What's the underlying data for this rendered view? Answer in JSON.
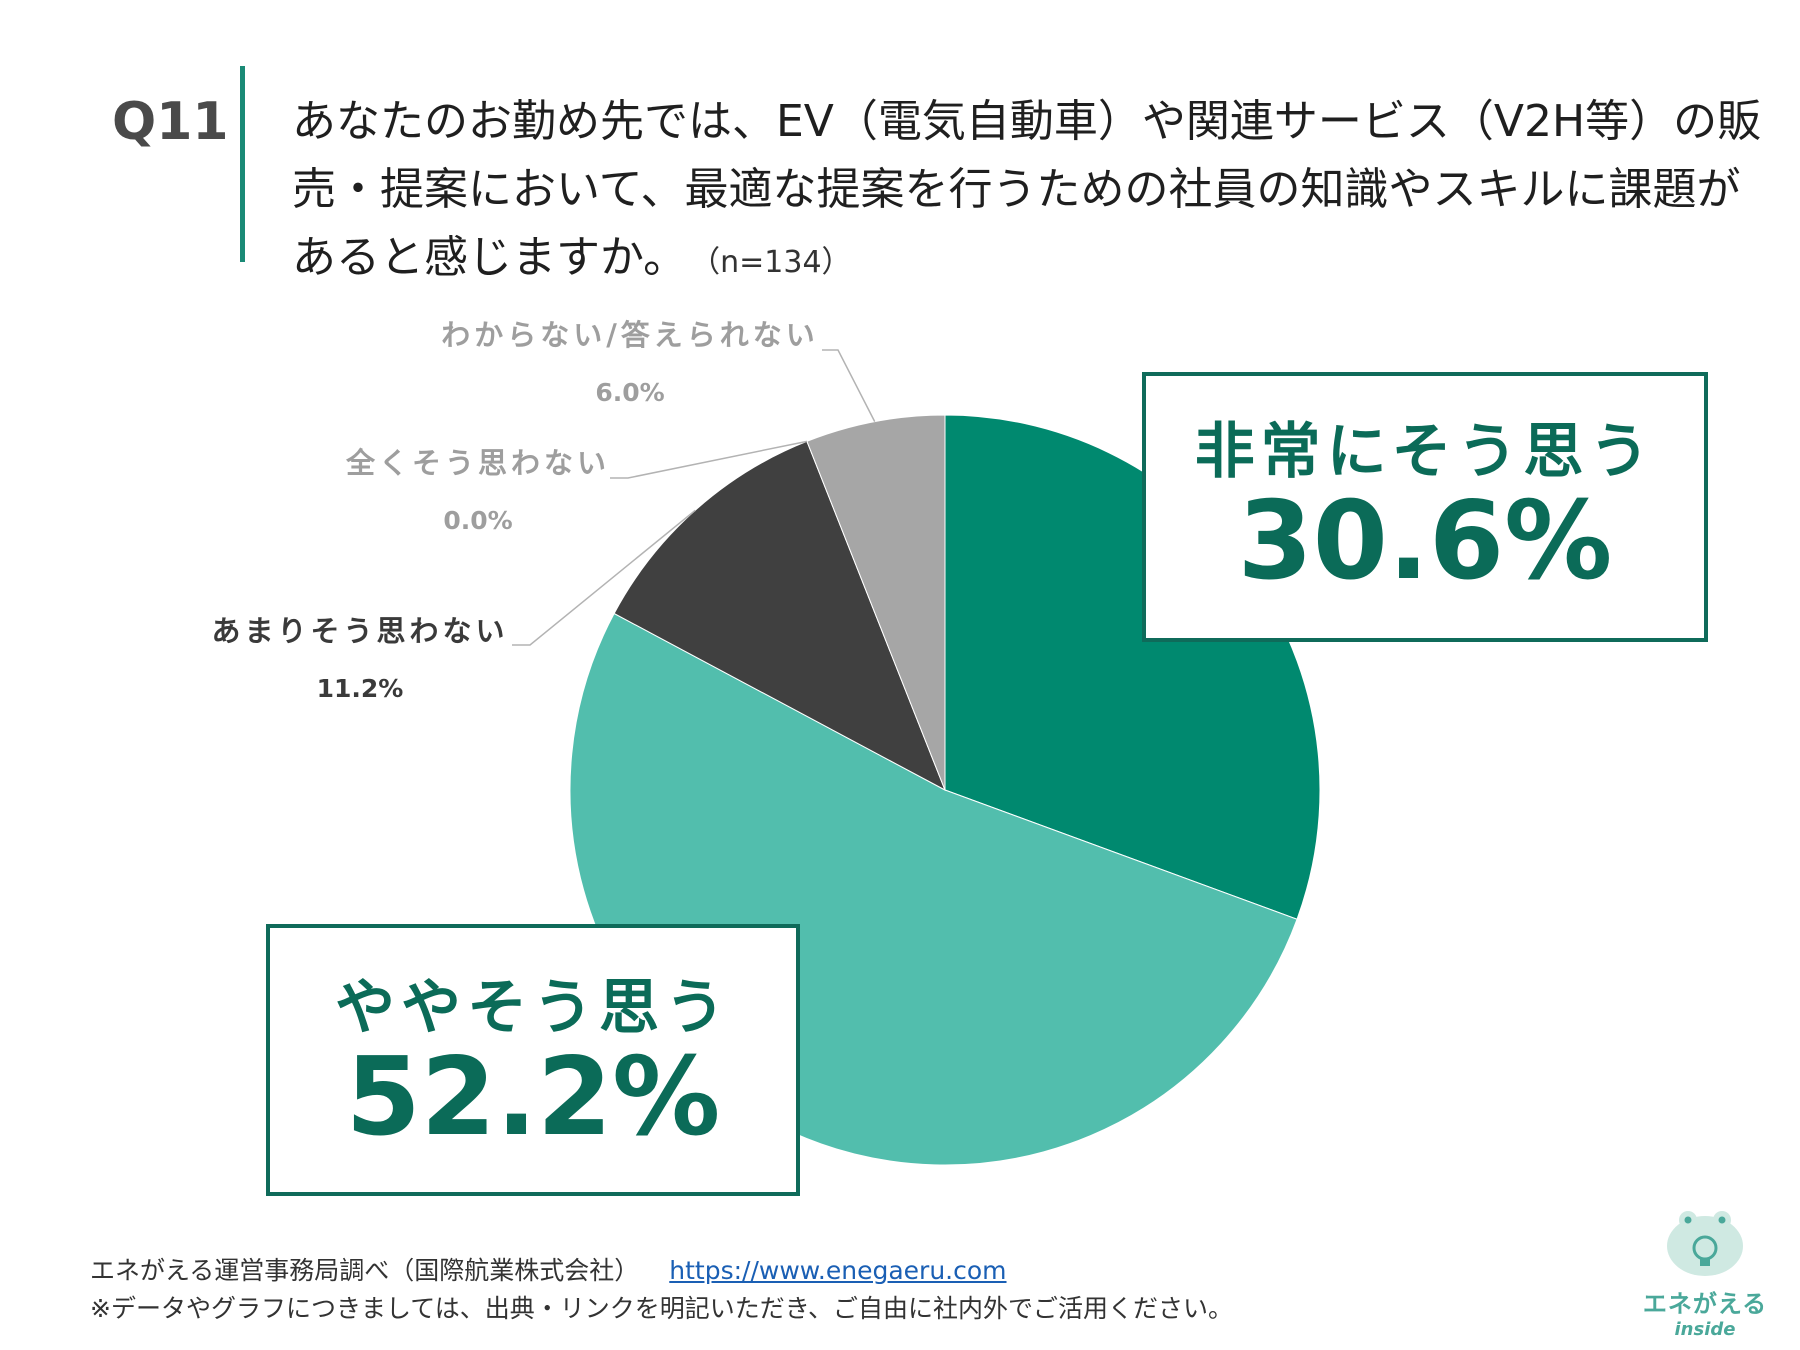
{
  "question": {
    "number": "Q11",
    "text": "あなたのお勤め先では、EV（電気自動車）や関連サービス（V2H等）の販売・提案において、最適な提案を行うための社員の知識やスキルに課題があると感じますか。",
    "sample": "（n=134）"
  },
  "chart_data": {
    "type": "pie",
    "start": "12 o'clock, clockwise",
    "slices": [
      {
        "label": "非常にそう思う",
        "value": 30.6,
        "value_label": "30.6%",
        "color": "#00896f"
      },
      {
        "label": "ややそう思う",
        "value": 52.2,
        "value_label": "52.2%",
        "color": "#52bead"
      },
      {
        "label": "あまりそう思わない",
        "value": 11.2,
        "value_label": "11.2%",
        "color": "#404040"
      },
      {
        "label": "全くそう思わない",
        "value": 0.0,
        "value_label": "0.0%",
        "color": "#2f2f2f"
      },
      {
        "label": "わからない/答えられない",
        "value": 6.0,
        "value_label": "6.0%",
        "color": "#a6a6a6"
      }
    ]
  },
  "footer": {
    "source": "エネがえる運営事務局調べ（国際航業株式会社）",
    "url": "https://www.enegaeru.com",
    "note": "※データやグラフにつきましては、出典・リンクを明記いただき、ご自由に社内外でご活用ください。"
  },
  "logo": {
    "name": "エネがえる",
    "sub": "inside",
    "icon": "frog-lightbulb-icon"
  }
}
